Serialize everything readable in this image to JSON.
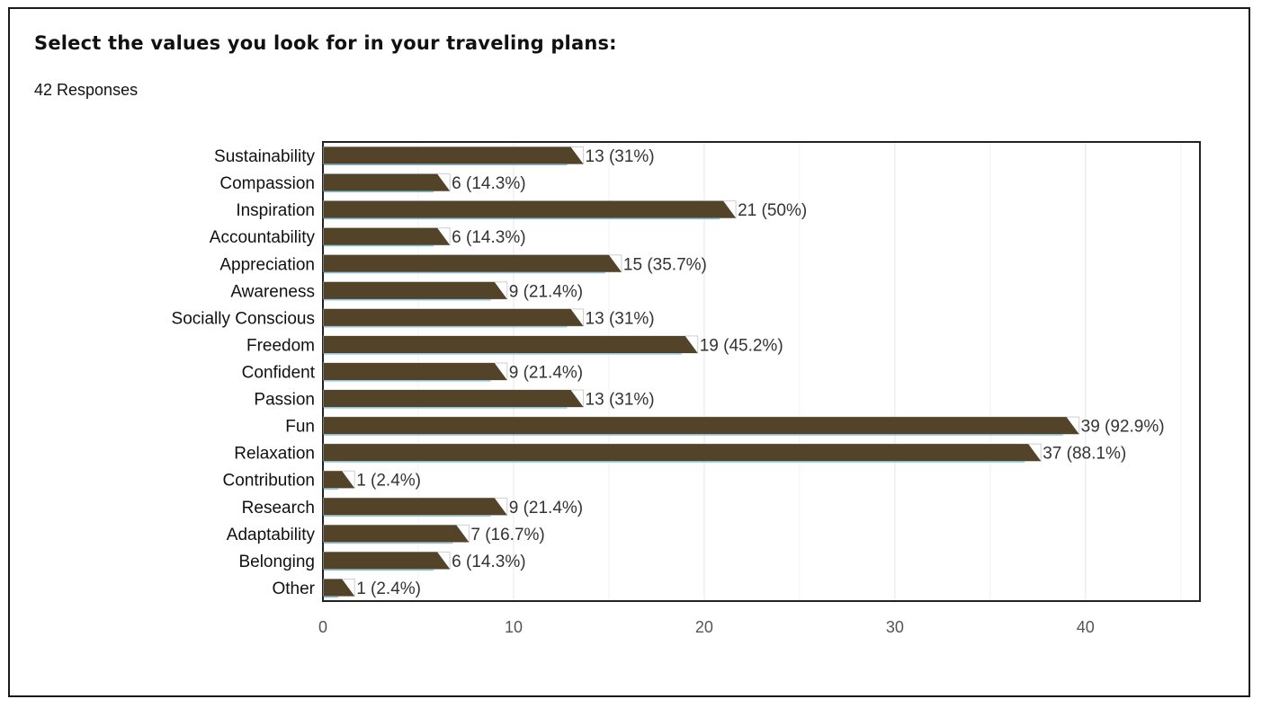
{
  "question": {
    "title": "Select the values you look for in your traveling plans:",
    "responses": "42 Responses"
  },
  "colors": {
    "bar": "#524329",
    "accent_line": "#27a3d8",
    "grid": "#e6e6e6",
    "axis": "#222222"
  },
  "chart_data": {
    "type": "bar",
    "orientation": "horizontal",
    "categories": [
      "Sustainability",
      "Compassion",
      "Inspiration",
      "Accountability",
      "Appreciation",
      "Awareness",
      "Socially Conscious",
      "Freedom",
      "Confident",
      "Passion",
      "Fun",
      "Relaxation",
      "Contribution",
      "Research",
      "Adaptability",
      "Belonging",
      "Other"
    ],
    "values": [
      13,
      6,
      21,
      6,
      15,
      9,
      13,
      19,
      9,
      13,
      39,
      37,
      1,
      9,
      7,
      6,
      1
    ],
    "data_labels": [
      "13 (31%)",
      "6 (14.3%)",
      "21 (50%)",
      "6 (14.3%)",
      "15 (35.7%)",
      "9 (21.4%)",
      "13 (31%)",
      "19 (45.2%)",
      "9 (21.4%)",
      "13 (31%)",
      "39 (92.9%)",
      "37 (88.1%)",
      "1 (2.4%)",
      "9 (21.4%)",
      "7 (16.7%)",
      "6 (14.3%)",
      "1 (2.4%)"
    ],
    "xlim": [
      0,
      46
    ],
    "xticks": [
      0,
      10,
      20,
      30,
      40
    ],
    "grid": true,
    "legend": "none"
  }
}
